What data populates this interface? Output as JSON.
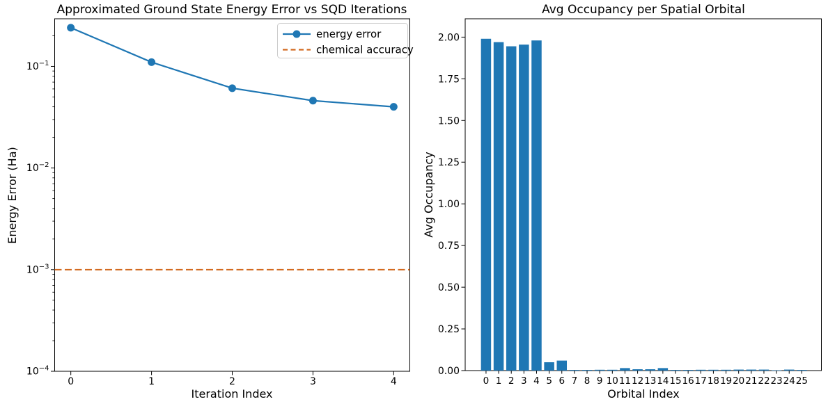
{
  "figure": {
    "background": "#ffffff"
  },
  "chart_data": [
    {
      "type": "line",
      "title": "Approximated Ground State Energy Error vs SQD Iterations",
      "xlabel": "Iteration Index",
      "ylabel": "Energy Error (Ha)",
      "yscale": "log",
      "xlim": [
        -0.2,
        4.2
      ],
      "ylim": [
        0.0001,
        0.294
      ],
      "grid": false,
      "x": [
        0,
        1,
        2,
        3,
        4
      ],
      "x_ticks": [
        {
          "value": 0,
          "label": "0"
        },
        {
          "value": 1,
          "label": "1"
        },
        {
          "value": 2,
          "label": "2"
        },
        {
          "value": 3,
          "label": "3"
        },
        {
          "value": 4,
          "label": "4"
        }
      ],
      "y_ticks": [
        {
          "value": 0.1,
          "label": "10⁻¹",
          "base": "10",
          "exp": "−1"
        },
        {
          "value": 0.01,
          "label": "10⁻²",
          "base": "10",
          "exp": "−2"
        },
        {
          "value": 0.001,
          "label": "10⁻³",
          "base": "10",
          "exp": "−3"
        },
        {
          "value": 0.0001,
          "label": "10⁻⁴",
          "base": "10",
          "exp": "−4"
        }
      ],
      "series": [
        {
          "name": "energy error",
          "values": [
            0.24,
            0.11,
            0.061,
            0.046,
            0.04
          ],
          "color": "#1f77b4",
          "marker": "circle",
          "style": "solid"
        }
      ],
      "hline": {
        "name": "chemical accuracy",
        "value": 0.001,
        "color": "#d2691e",
        "style": "dashed"
      },
      "legend": {
        "position": "upper right",
        "entries": [
          "energy error",
          "chemical accuracy"
        ]
      }
    },
    {
      "type": "bar",
      "title": "Avg Occupancy per Spatial Orbital",
      "xlabel": "Orbital Index",
      "ylabel": "Avg Occupancy",
      "yscale": "linear",
      "xlim": [
        -1.65,
        26.55
      ],
      "ylim": [
        0,
        2.11
      ],
      "grid": false,
      "bar_color": "#1f77b4",
      "bar_width": 0.8,
      "categories": [
        "0",
        "1",
        "2",
        "3",
        "4",
        "5",
        "6",
        "7",
        "8",
        "9",
        "10",
        "11",
        "12",
        "13",
        "14",
        "15",
        "16",
        "17",
        "18",
        "19",
        "20",
        "21",
        "22",
        "23",
        "24",
        "25"
      ],
      "values": [
        1.99,
        1.97,
        1.945,
        1.955,
        1.98,
        0.05,
        0.06,
        0.004,
        0.004,
        0.005,
        0.005,
        0.015,
        0.008,
        0.008,
        0.015,
        0.004,
        0.004,
        0.005,
        0.005,
        0.005,
        0.006,
        0.006,
        0.006,
        0.002,
        0.006,
        0.004
      ],
      "y_ticks": [
        {
          "value": 0.0,
          "label": "0.00"
        },
        {
          "value": 0.25,
          "label": "0.25"
        },
        {
          "value": 0.5,
          "label": "0.50"
        },
        {
          "value": 0.75,
          "label": "0.75"
        },
        {
          "value": 1.0,
          "label": "1.00"
        },
        {
          "value": 1.25,
          "label": "1.25"
        },
        {
          "value": 1.5,
          "label": "1.50"
        },
        {
          "value": 1.75,
          "label": "1.75"
        },
        {
          "value": 2.0,
          "label": "2.00"
        }
      ]
    }
  ]
}
